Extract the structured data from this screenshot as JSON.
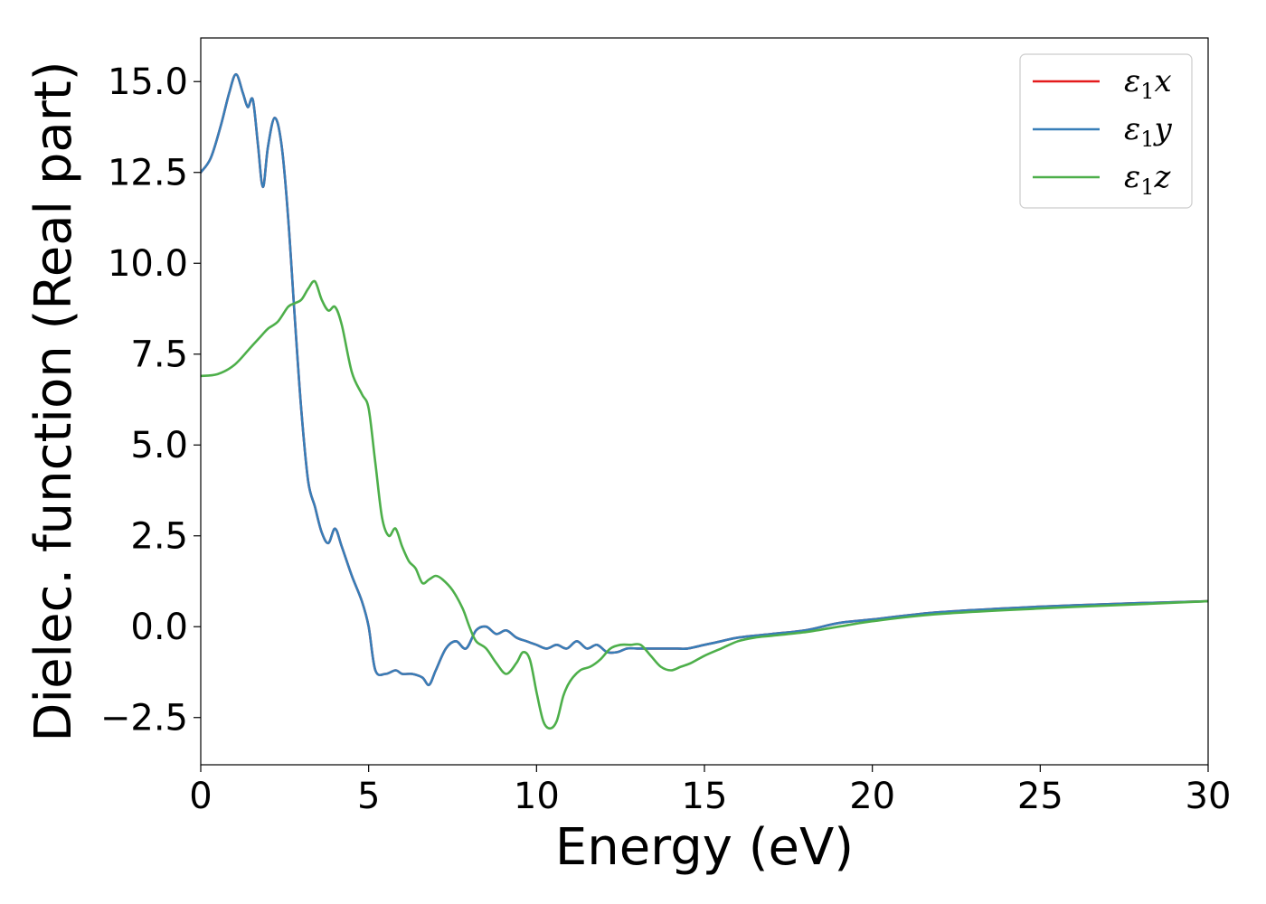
{
  "chart_data": {
    "type": "line",
    "xlabel": "Energy (eV)",
    "ylabel": "Dielec. function (Real part)",
    "xlim": [
      0,
      30
    ],
    "ylim": [
      -3.8,
      16.2
    ],
    "xticks": [
      0,
      5,
      10,
      15,
      20,
      25,
      30
    ],
    "xtick_labels": [
      "0",
      "5",
      "10",
      "15",
      "20",
      "25",
      "30"
    ],
    "yticks": [
      -2.5,
      0.0,
      2.5,
      5.0,
      7.5,
      10.0,
      12.5,
      15.0
    ],
    "ytick_labels": [
      "−2.5",
      "0.0",
      "2.5",
      "5.0",
      "7.5",
      "10.0",
      "12.5",
      "15.0"
    ],
    "grid": false,
    "legend_position": "top-right",
    "series": [
      {
        "name": "ε₁x",
        "symbol": "ε",
        "subscript": "1",
        "suffix": "x",
        "color": "#e41a1c",
        "x": [
          0,
          0.3,
          0.6,
          0.85,
          1.05,
          1.25,
          1.4,
          1.55,
          1.7,
          1.85,
          2.0,
          2.2,
          2.4,
          2.6,
          2.8,
          3.0,
          3.2,
          3.4,
          3.6,
          3.8,
          4.0,
          4.2,
          4.5,
          4.8,
          5.0,
          5.2,
          5.5,
          5.8,
          6.0,
          6.3,
          6.6,
          6.8,
          7.0,
          7.3,
          7.6,
          7.9,
          8.2,
          8.5,
          8.8,
          9.1,
          9.4,
          9.7,
          10.0,
          10.3,
          10.6,
          10.9,
          11.2,
          11.5,
          11.8,
          12.1,
          12.4,
          12.7,
          13.0,
          13.3,
          13.6,
          13.9,
          14.2,
          14.5,
          15.0,
          15.5,
          16.0,
          17.0,
          18.0,
          19.0,
          20.0,
          22.0,
          25.0,
          28.0,
          30.0
        ],
        "y": [
          12.5,
          12.9,
          13.8,
          14.7,
          15.2,
          14.7,
          14.3,
          14.5,
          13.3,
          12.1,
          13.2,
          14.0,
          13.3,
          11.3,
          8.5,
          5.9,
          4.0,
          3.3,
          2.6,
          2.3,
          2.7,
          2.2,
          1.4,
          0.7,
          0.0,
          -1.2,
          -1.3,
          -1.2,
          -1.3,
          -1.3,
          -1.4,
          -1.6,
          -1.2,
          -0.6,
          -0.4,
          -0.6,
          -0.1,
          0.0,
          -0.2,
          -0.1,
          -0.3,
          -0.4,
          -0.5,
          -0.6,
          -0.5,
          -0.6,
          -0.4,
          -0.6,
          -0.5,
          -0.7,
          -0.7,
          -0.6,
          -0.6,
          -0.6,
          -0.6,
          -0.6,
          -0.6,
          -0.6,
          -0.5,
          -0.4,
          -0.3,
          -0.2,
          -0.1,
          0.1,
          0.2,
          0.4,
          0.55,
          0.65,
          0.7
        ]
      },
      {
        "name": "ε₁y",
        "symbol": "ε",
        "subscript": "1",
        "suffix": "y",
        "color": "#377eb8",
        "x": [
          0,
          0.3,
          0.6,
          0.85,
          1.05,
          1.25,
          1.4,
          1.55,
          1.7,
          1.85,
          2.0,
          2.2,
          2.4,
          2.6,
          2.8,
          3.0,
          3.2,
          3.4,
          3.6,
          3.8,
          4.0,
          4.2,
          4.5,
          4.8,
          5.0,
          5.2,
          5.5,
          5.8,
          6.0,
          6.3,
          6.6,
          6.8,
          7.0,
          7.3,
          7.6,
          7.9,
          8.2,
          8.5,
          8.8,
          9.1,
          9.4,
          9.7,
          10.0,
          10.3,
          10.6,
          10.9,
          11.2,
          11.5,
          11.8,
          12.1,
          12.4,
          12.7,
          13.0,
          13.3,
          13.6,
          13.9,
          14.2,
          14.5,
          15.0,
          15.5,
          16.0,
          17.0,
          18.0,
          19.0,
          20.0,
          22.0,
          25.0,
          28.0,
          30.0
        ],
        "y": [
          12.5,
          12.9,
          13.8,
          14.7,
          15.2,
          14.7,
          14.3,
          14.5,
          13.3,
          12.1,
          13.2,
          14.0,
          13.3,
          11.3,
          8.5,
          5.9,
          4.0,
          3.3,
          2.6,
          2.3,
          2.7,
          2.2,
          1.4,
          0.7,
          0.0,
          -1.2,
          -1.3,
          -1.2,
          -1.3,
          -1.3,
          -1.4,
          -1.6,
          -1.2,
          -0.6,
          -0.4,
          -0.6,
          -0.1,
          0.0,
          -0.2,
          -0.1,
          -0.3,
          -0.4,
          -0.5,
          -0.6,
          -0.5,
          -0.6,
          -0.4,
          -0.6,
          -0.5,
          -0.7,
          -0.7,
          -0.6,
          -0.6,
          -0.6,
          -0.6,
          -0.6,
          -0.6,
          -0.6,
          -0.5,
          -0.4,
          -0.3,
          -0.2,
          -0.1,
          0.1,
          0.2,
          0.4,
          0.55,
          0.65,
          0.7
        ]
      },
      {
        "name": "ε₁z",
        "symbol": "ε",
        "subscript": "1",
        "suffix": "z",
        "color": "#4daf4a",
        "x": [
          0,
          0.5,
          1.0,
          1.5,
          1.8,
          2.0,
          2.3,
          2.6,
          2.8,
          3.0,
          3.2,
          3.4,
          3.6,
          3.8,
          4.0,
          4.2,
          4.5,
          4.8,
          5.0,
          5.2,
          5.4,
          5.6,
          5.8,
          6.0,
          6.2,
          6.4,
          6.6,
          6.8,
          7.0,
          7.2,
          7.5,
          7.8,
          8.0,
          8.2,
          8.5,
          8.8,
          9.1,
          9.4,
          9.6,
          9.8,
          10.0,
          10.2,
          10.4,
          10.6,
          10.8,
          11.0,
          11.3,
          11.6,
          11.9,
          12.2,
          12.5,
          12.8,
          13.1,
          13.4,
          13.7,
          14.0,
          14.3,
          14.6,
          15.0,
          15.5,
          16.0,
          16.5,
          17.0,
          18.0,
          19.0,
          20.0,
          22.0,
          25.0,
          28.0,
          30.0
        ],
        "y": [
          6.9,
          6.95,
          7.2,
          7.7,
          8.0,
          8.2,
          8.4,
          8.8,
          8.9,
          9.0,
          9.3,
          9.5,
          9.0,
          8.7,
          8.8,
          8.3,
          7.0,
          6.4,
          6.0,
          4.5,
          3.0,
          2.5,
          2.7,
          2.2,
          1.8,
          1.6,
          1.2,
          1.3,
          1.4,
          1.3,
          1.0,
          0.5,
          0.0,
          -0.4,
          -0.6,
          -1.0,
          -1.3,
          -1.0,
          -0.7,
          -0.9,
          -1.8,
          -2.6,
          -2.8,
          -2.6,
          -1.9,
          -1.5,
          -1.2,
          -1.1,
          -0.9,
          -0.6,
          -0.5,
          -0.5,
          -0.5,
          -0.8,
          -1.1,
          -1.2,
          -1.1,
          -1.0,
          -0.8,
          -0.6,
          -0.4,
          -0.3,
          -0.25,
          -0.15,
          0.0,
          0.15,
          0.35,
          0.5,
          0.62,
          0.7
        ]
      }
    ]
  }
}
